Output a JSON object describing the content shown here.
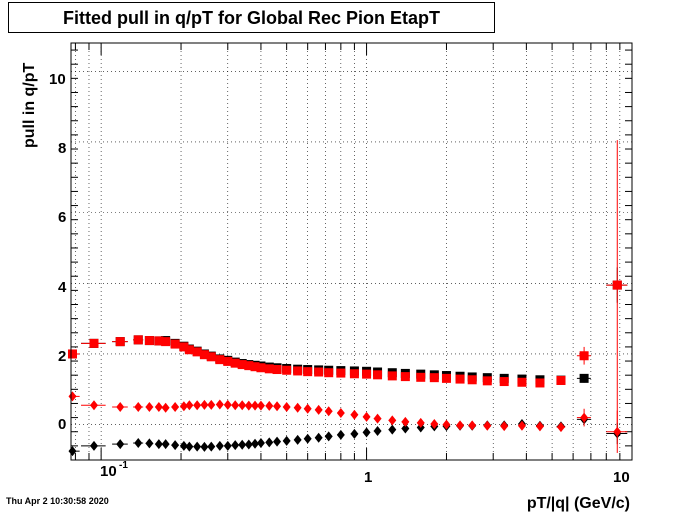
{
  "chart_data": {
    "type": "scatter",
    "title": "Fitted pull in q/pT for Global Rec Pion EtapT",
    "xlabel": "pT/|q| (GeV/c)",
    "ylabel": "pull in q/pT",
    "xscale": "log",
    "xlim": [
      0.077,
      10
    ],
    "ylim": [
      -1,
      10.8
    ],
    "x_tick_labels": [
      "10",
      "1",
      "10"
    ],
    "x_tick_exponent": "-1",
    "y_tick_labels": [
      "0",
      "2",
      "4",
      "6",
      "8",
      "10"
    ],
    "grid": true,
    "footer": "Thu Apr  2 10:30:58 2020",
    "series": [
      {
        "marker": "square",
        "color": "#000000",
        "x": [
          0.078,
          0.094,
          0.118,
          0.138,
          0.152,
          0.165,
          0.175,
          0.19,
          0.205,
          0.215,
          0.23,
          0.245,
          0.26,
          0.28,
          0.3,
          0.32,
          0.34,
          0.36,
          0.38,
          0.4,
          0.43,
          0.46,
          0.5,
          0.55,
          0.6,
          0.66,
          0.72,
          0.8,
          0.9,
          1.0,
          1.1,
          1.25,
          1.4,
          1.6,
          1.8,
          2.0,
          2.25,
          2.5,
          2.85,
          3.3,
          3.85,
          4.5,
          5.4,
          6.6,
          8.8
        ],
        "y": [
          2.0,
          2.3,
          2.35,
          2.4,
          2.38,
          2.37,
          2.38,
          2.3,
          2.22,
          2.14,
          2.08,
          2.0,
          1.94,
          1.86,
          1.82,
          1.77,
          1.73,
          1.7,
          1.68,
          1.66,
          1.63,
          1.61,
          1.59,
          1.57,
          1.56,
          1.55,
          1.54,
          1.53,
          1.52,
          1.51,
          1.49,
          1.47,
          1.45,
          1.43,
          1.41,
          1.39,
          1.37,
          1.35,
          1.33,
          1.31,
          1.29,
          1.27,
          1.26,
          1.31,
          3.95
        ],
        "xerr": [
          0.005,
          0.01,
          0.008,
          0.006,
          0.005,
          0.005,
          0.005,
          0.006,
          0.006,
          0.006,
          0.007,
          0.007,
          0.008,
          0.008,
          0.008,
          0.009,
          0.009,
          0.01,
          0.01,
          0.011,
          0.012,
          0.013,
          0.015,
          0.016,
          0.018,
          0.02,
          0.022,
          0.025,
          0.028,
          0.03,
          0.035,
          0.04,
          0.045,
          0.05,
          0.055,
          0.06,
          0.07,
          0.08,
          0.09,
          0.1,
          0.12,
          0.15,
          0.2,
          0.4,
          0.8
        ],
        "yerr": [
          0.02,
          0.02,
          0.02,
          0.02,
          0.02,
          0.02,
          0.02,
          0.02,
          0.02,
          0.02,
          0.02,
          0.02,
          0.02,
          0.02,
          0.02,
          0.02,
          0.02,
          0.02,
          0.02,
          0.02,
          0.02,
          0.02,
          0.02,
          0.02,
          0.02,
          0.02,
          0.02,
          0.02,
          0.02,
          0.02,
          0.02,
          0.02,
          0.02,
          0.02,
          0.02,
          0.02,
          0.02,
          0.02,
          0.02,
          0.03,
          0.03,
          0.04,
          0.06,
          0.12,
          0.5
        ]
      },
      {
        "marker": "square",
        "color": "#ff0000",
        "x": [
          0.078,
          0.094,
          0.118,
          0.138,
          0.152,
          0.165,
          0.175,
          0.19,
          0.205,
          0.215,
          0.23,
          0.245,
          0.26,
          0.28,
          0.3,
          0.32,
          0.34,
          0.36,
          0.38,
          0.4,
          0.43,
          0.46,
          0.5,
          0.55,
          0.6,
          0.66,
          0.72,
          0.8,
          0.9,
          1.0,
          1.1,
          1.25,
          1.4,
          1.6,
          1.8,
          2.0,
          2.25,
          2.5,
          2.85,
          3.3,
          3.85,
          4.5,
          5.4,
          6.6,
          8.8
        ],
        "y": [
          2.0,
          2.3,
          2.35,
          2.4,
          2.38,
          2.37,
          2.35,
          2.28,
          2.2,
          2.12,
          2.06,
          1.98,
          1.92,
          1.84,
          1.79,
          1.74,
          1.7,
          1.67,
          1.64,
          1.61,
          1.58,
          1.56,
          1.54,
          1.52,
          1.5,
          1.49,
          1.47,
          1.46,
          1.44,
          1.43,
          1.41,
          1.38,
          1.36,
          1.34,
          1.33,
          1.31,
          1.29,
          1.27,
          1.24,
          1.22,
          1.2,
          1.18,
          1.25,
          1.95,
          3.95
        ],
        "xerr": [
          0.005,
          0.01,
          0.008,
          0.006,
          0.005,
          0.005,
          0.005,
          0.006,
          0.006,
          0.006,
          0.007,
          0.007,
          0.008,
          0.008,
          0.008,
          0.009,
          0.009,
          0.01,
          0.01,
          0.011,
          0.012,
          0.013,
          0.015,
          0.016,
          0.018,
          0.02,
          0.022,
          0.025,
          0.028,
          0.03,
          0.035,
          0.04,
          0.045,
          0.05,
          0.055,
          0.06,
          0.07,
          0.08,
          0.09,
          0.1,
          0.12,
          0.15,
          0.2,
          0.4,
          0.8
        ],
        "yerr": [
          0.02,
          0.02,
          0.02,
          0.02,
          0.02,
          0.02,
          0.02,
          0.02,
          0.02,
          0.02,
          0.02,
          0.02,
          0.02,
          0.02,
          0.02,
          0.02,
          0.02,
          0.02,
          0.02,
          0.02,
          0.02,
          0.02,
          0.02,
          0.02,
          0.02,
          0.02,
          0.02,
          0.02,
          0.02,
          0.02,
          0.02,
          0.02,
          0.02,
          0.02,
          0.02,
          0.02,
          0.02,
          0.02,
          0.02,
          0.03,
          0.03,
          0.04,
          0.06,
          0.25,
          4.1
        ]
      },
      {
        "marker": "diamond",
        "color": "#000000",
        "x": [
          0.078,
          0.094,
          0.118,
          0.138,
          0.152,
          0.165,
          0.175,
          0.19,
          0.205,
          0.215,
          0.23,
          0.245,
          0.26,
          0.28,
          0.3,
          0.32,
          0.34,
          0.36,
          0.38,
          0.4,
          0.43,
          0.46,
          0.5,
          0.55,
          0.6,
          0.66,
          0.72,
          0.8,
          0.9,
          1.0,
          1.1,
          1.25,
          1.4,
          1.6,
          1.8,
          2.0,
          2.25,
          2.5,
          2.85,
          3.3,
          3.85,
          4.5,
          5.4,
          6.6,
          8.8
        ],
        "y": [
          -0.75,
          -0.6,
          -0.55,
          -0.52,
          -0.53,
          -0.55,
          -0.55,
          -0.58,
          -0.6,
          -0.62,
          -0.62,
          -0.63,
          -0.62,
          -0.6,
          -0.6,
          -0.58,
          -0.57,
          -0.56,
          -0.54,
          -0.52,
          -0.5,
          -0.48,
          -0.46,
          -0.43,
          -0.4,
          -0.37,
          -0.33,
          -0.29,
          -0.26,
          -0.22,
          -0.18,
          -0.14,
          -0.11,
          -0.08,
          -0.05,
          -0.04,
          -0.03,
          -0.03,
          -0.02,
          -0.02,
          0.02,
          -0.03,
          -0.05,
          0.15,
          -0.25
        ],
        "xerr": [
          0.005,
          0.01,
          0.008,
          0.006,
          0.005,
          0.005,
          0.005,
          0.006,
          0.006,
          0.006,
          0.007,
          0.007,
          0.008,
          0.008,
          0.008,
          0.009,
          0.009,
          0.01,
          0.01,
          0.011,
          0.012,
          0.013,
          0.015,
          0.016,
          0.018,
          0.02,
          0.022,
          0.025,
          0.028,
          0.03,
          0.035,
          0.04,
          0.045,
          0.05,
          0.055,
          0.06,
          0.07,
          0.08,
          0.09,
          0.1,
          0.12,
          0.15,
          0.2,
          0.4,
          0.8
        ],
        "yerr": [
          0.02,
          0.02,
          0.02,
          0.02,
          0.02,
          0.02,
          0.02,
          0.02,
          0.02,
          0.02,
          0.02,
          0.02,
          0.02,
          0.02,
          0.02,
          0.02,
          0.02,
          0.02,
          0.02,
          0.02,
          0.02,
          0.02,
          0.02,
          0.02,
          0.02,
          0.02,
          0.02,
          0.02,
          0.02,
          0.02,
          0.02,
          0.02,
          0.02,
          0.02,
          0.02,
          0.02,
          0.02,
          0.02,
          0.02,
          0.03,
          0.03,
          0.04,
          0.06,
          0.12,
          0.3
        ]
      },
      {
        "marker": "diamond",
        "color": "#ff0000",
        "x": [
          0.078,
          0.094,
          0.118,
          0.138,
          0.152,
          0.165,
          0.175,
          0.19,
          0.205,
          0.215,
          0.23,
          0.245,
          0.26,
          0.28,
          0.3,
          0.32,
          0.34,
          0.36,
          0.38,
          0.4,
          0.43,
          0.46,
          0.5,
          0.55,
          0.6,
          0.66,
          0.72,
          0.8,
          0.9,
          1.0,
          1.1,
          1.25,
          1.4,
          1.6,
          1.8,
          2.0,
          2.25,
          2.5,
          2.85,
          3.3,
          3.85,
          4.5,
          5.4,
          6.6,
          8.8
        ],
        "y": [
          0.8,
          0.55,
          0.5,
          0.5,
          0.5,
          0.5,
          0.48,
          0.5,
          0.52,
          0.55,
          0.55,
          0.56,
          0.56,
          0.57,
          0.56,
          0.55,
          0.55,
          0.54,
          0.54,
          0.54,
          0.53,
          0.52,
          0.5,
          0.48,
          0.45,
          0.42,
          0.38,
          0.33,
          0.28,
          0.22,
          0.17,
          0.12,
          0.08,
          0.05,
          0.02,
          0.0,
          -0.02,
          -0.02,
          -0.03,
          -0.04,
          -0.03,
          -0.05,
          -0.07,
          0.2,
          -0.2
        ],
        "xerr": [
          0.005,
          0.01,
          0.008,
          0.006,
          0.005,
          0.005,
          0.005,
          0.006,
          0.006,
          0.006,
          0.007,
          0.007,
          0.008,
          0.008,
          0.008,
          0.009,
          0.009,
          0.01,
          0.01,
          0.011,
          0.012,
          0.013,
          0.015,
          0.016,
          0.018,
          0.02,
          0.022,
          0.025,
          0.028,
          0.03,
          0.035,
          0.04,
          0.045,
          0.05,
          0.055,
          0.06,
          0.07,
          0.08,
          0.09,
          0.1,
          0.12,
          0.15,
          0.2,
          0.4,
          0.8
        ],
        "yerr": [
          0.02,
          0.02,
          0.02,
          0.02,
          0.02,
          0.02,
          0.02,
          0.02,
          0.02,
          0.02,
          0.02,
          0.02,
          0.02,
          0.02,
          0.02,
          0.02,
          0.02,
          0.02,
          0.02,
          0.02,
          0.02,
          0.02,
          0.02,
          0.02,
          0.02,
          0.02,
          0.02,
          0.02,
          0.02,
          0.02,
          0.02,
          0.02,
          0.02,
          0.02,
          0.02,
          0.02,
          0.02,
          0.02,
          0.02,
          0.03,
          0.03,
          0.04,
          0.06,
          0.25,
          0.6
        ]
      }
    ]
  }
}
